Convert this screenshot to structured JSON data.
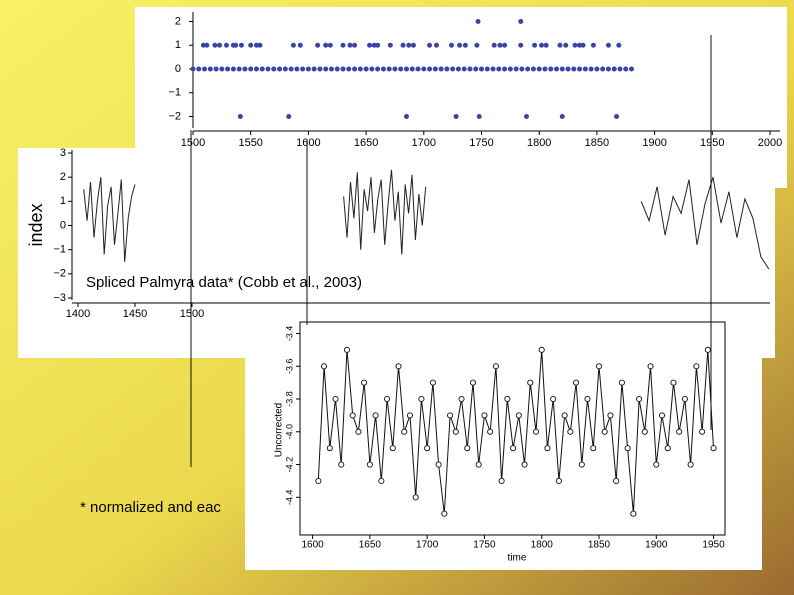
{
  "captions": [
    "Spliced Palmyra data* (Cobb et al., 2003)",
    "* normalized and eac"
  ],
  "panels": [
    {
      "type": "scatter",
      "color": "#3a44a8",
      "xlim": [
        1500,
        2000
      ],
      "xticks": [
        1500,
        1550,
        1600,
        1650,
        1700,
        1750,
        1800,
        1850,
        1900,
        1950,
        2000
      ],
      "ylim": [
        -2.4,
        2.4
      ],
      "yticks": [
        2,
        1,
        0,
        {
          "value": -1,
          "label": "−1"
        },
        {
          "value": -2,
          "label": "−2"
        }
      ],
      "levels": [
        {
          "y": 0,
          "x": [
            1500,
            1505,
            1510,
            1515,
            1520,
            1525,
            1530,
            1535,
            1540,
            1545,
            1550,
            1555,
            1560,
            1565,
            1570,
            1575,
            1580,
            1585,
            1590,
            1595,
            1600,
            1605,
            1610,
            1615,
            1620,
            1625,
            1630,
            1635,
            1640,
            1645,
            1650,
            1655,
            1660,
            1665,
            1670,
            1675,
            1680,
            1685,
            1690,
            1695,
            1700,
            1705,
            1710,
            1715,
            1720,
            1725,
            1730,
            1735,
            1740,
            1745,
            1750,
            1755,
            1760,
            1765,
            1770,
            1775,
            1780,
            1785,
            1790,
            1795,
            1800,
            1805,
            1810,
            1815,
            1820,
            1825,
            1830,
            1835,
            1840,
            1845,
            1850,
            1855,
            1860,
            1865,
            1870,
            1875,
            1880
          ]
        },
        {
          "y": 1,
          "x": [
            1509,
            1512,
            1519,
            1523,
            1529,
            1535,
            1537,
            1542,
            1550,
            1555,
            1558,
            1587,
            1593,
            1608,
            1615,
            1619,
            1630,
            1636,
            1640,
            1653,
            1657,
            1660,
            1671,
            1682,
            1687,
            1691,
            1705,
            1711,
            1724,
            1731,
            1736,
            1746,
            1761,
            1766,
            1770,
            1784,
            1796,
            1802,
            1806,
            1818,
            1823,
            1831,
            1835,
            1838,
            1847,
            1860,
            1869
          ]
        },
        {
          "y": -2,
          "x": [
            1541,
            1583,
            1685,
            1728,
            1748,
            1789,
            1820,
            1867
          ]
        },
        {
          "y": 2,
          "x": [
            1747,
            1784
          ]
        }
      ]
    },
    {
      "type": "line",
      "ylabel": "index",
      "xlim": [
        1400,
        2000
      ],
      "xticks": [
        1400,
        1450,
        1500
      ],
      "ylim": [
        -3,
        3
      ],
      "yticks": [
        3,
        2,
        1,
        0,
        {
          "value": -1,
          "label": "−1"
        },
        {
          "value": -2,
          "label": "−2"
        },
        {
          "value": -3,
          "label": "−3"
        }
      ],
      "segments": [
        {
          "x": [
            1405,
            1408,
            1411,
            1414,
            1417,
            1420,
            1423,
            1426,
            1429,
            1432,
            1435,
            1438,
            1441,
            1444,
            1447,
            1450
          ],
          "values": [
            1.5,
            0.2,
            1.8,
            -0.5,
            1.0,
            2.0,
            -1.2,
            0.8,
            1.6,
            -0.8,
            0.5,
            1.9,
            -1.5,
            0.3,
            1.2,
            1.7
          ]
        },
        {
          "x": [
            1633,
            1636,
            1639,
            1642,
            1645,
            1648,
            1651,
            1654,
            1657,
            1660,
            1663,
            1666,
            1669,
            1672,
            1675,
            1678,
            1681,
            1684,
            1687,
            1690,
            1693,
            1696,
            1699,
            1702,
            1705
          ],
          "values": [
            1.2,
            -0.5,
            1.8,
            0.3,
            2.2,
            -1.0,
            1.5,
            0.6,
            2.0,
            -0.3,
            1.1,
            1.9,
            -0.8,
            0.9,
            2.3,
            0.2,
            1.4,
            -1.2,
            1.7,
            0.5,
            2.1,
            -0.6,
            1.3,
            0.0,
            1.6
          ]
        },
        {
          "x": [
            1894,
            1901,
            1908,
            1915,
            1922,
            1929,
            1936,
            1943,
            1950,
            1957,
            1964,
            1971,
            1978,
            1985,
            1992,
            1999,
            2006
          ],
          "values": [
            1.0,
            0.2,
            1.6,
            -0.4,
            1.2,
            0.5,
            1.9,
            -0.8,
            0.9,
            2.0,
            0.1,
            1.4,
            -0.5,
            1.1,
            0.3,
            -1.3,
            -1.8
          ]
        }
      ]
    },
    {
      "type": "linepoints",
      "xlabel": "time",
      "ylabel": "Uncorrected",
      "xlim": [
        1589,
        1960
      ],
      "xticks": [
        1600,
        1650,
        1700,
        1750,
        1800,
        1850,
        1900,
        1950
      ],
      "ylim": [
        -4.63,
        -3.33
      ],
      "yticks": [
        -3.4,
        -3.6,
        -3.8,
        {
          "value": -4,
          "label": "-4.0"
        },
        -4.2,
        -4.4
      ],
      "x": [
        1605,
        1610,
        1615,
        1620,
        1625,
        1630,
        1635,
        1640,
        1645,
        1650,
        1655,
        1660,
        1665,
        1670,
        1675,
        1680,
        1685,
        1690,
        1695,
        1700,
        1705,
        1710,
        1715,
        1720,
        1725,
        1730,
        1735,
        1740,
        1745,
        1750,
        1755,
        1760,
        1765,
        1770,
        1775,
        1780,
        1785,
        1790,
        1795,
        1800,
        1805,
        1810,
        1815,
        1820,
        1825,
        1830,
        1835,
        1840,
        1845,
        1850,
        1855,
        1860,
        1865,
        1870,
        1875,
        1880,
        1885,
        1890,
        1895,
        1900,
        1905,
        1910,
        1915,
        1920,
        1925,
        1930,
        1935,
        1940,
        1945,
        1950
      ],
      "values": [
        -4.3,
        -3.6,
        -4.1,
        -3.8,
        -4.2,
        -3.5,
        -3.9,
        -4.0,
        -3.7,
        -4.2,
        -3.9,
        -4.3,
        -3.8,
        -4.1,
        -3.6,
        -4.0,
        -3.9,
        -4.4,
        -3.8,
        -4.1,
        -3.7,
        -4.2,
        -4.5,
        -3.9,
        -4.0,
        -3.8,
        -4.1,
        -3.7,
        -4.2,
        -3.9,
        -4.0,
        -3.6,
        -4.3,
        -3.8,
        -4.1,
        -3.9,
        -4.2,
        -3.7,
        -4.0,
        -3.5,
        -4.1,
        -3.8,
        -4.3,
        -3.9,
        -4.0,
        -3.7,
        -4.2,
        -3.8,
        -4.1,
        -3.6,
        -4.0,
        -3.9,
        -4.3,
        -3.7,
        -4.1,
        -4.5,
        -3.8,
        -4.0,
        -3.6,
        -4.2,
        -3.9,
        -4.1,
        -3.7,
        -4.0,
        -3.8,
        -4.2,
        -3.6,
        -4.0,
        -3.5,
        -4.1
      ]
    }
  ]
}
